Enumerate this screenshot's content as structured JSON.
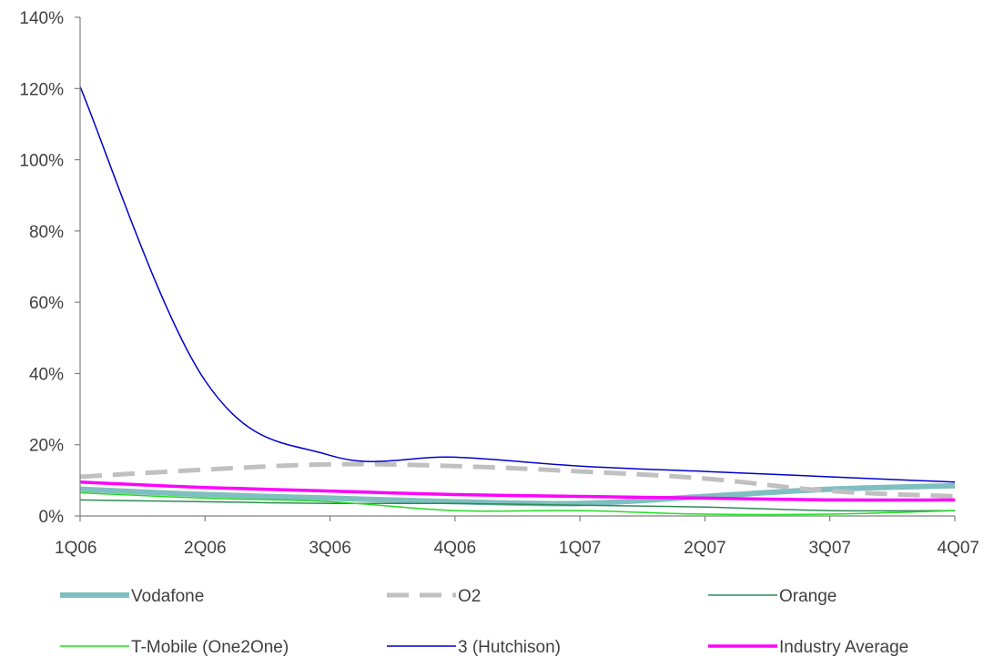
{
  "chart_data": {
    "type": "line",
    "title": "",
    "xlabel": "",
    "ylabel": "",
    "x": [
      "1Q06",
      "2Q06",
      "3Q06",
      "4Q06",
      "1Q07",
      "2Q07",
      "3Q07",
      "4Q07"
    ],
    "y_ticks": [
      "0%",
      "20%",
      "40%",
      "60%",
      "80%",
      "100%",
      "120%",
      "140%"
    ],
    "ylim": [
      0,
      140
    ],
    "grid": false,
    "legend_position": "bottom",
    "series": [
      {
        "name": "Vodafone",
        "color": "#7fbfbf",
        "style": "thick",
        "values": [
          7.5,
          6,
          5,
          4,
          3.5,
          5.5,
          7.5,
          8.5
        ]
      },
      {
        "name": "O2",
        "color": "#c0c0c0",
        "style": "dashed",
        "values": [
          11,
          13,
          14.5,
          14,
          12.5,
          10.5,
          7,
          5.5
        ]
      },
      {
        "name": "Orange",
        "color": "#2e8b57",
        "style": "thin",
        "values": [
          4.5,
          4,
          3.5,
          3.5,
          3,
          2.5,
          1.5,
          1.5
        ]
      },
      {
        "name": "T-Mobile (One2One)",
        "color": "#22dd22",
        "style": "thin",
        "values": [
          6.5,
          5,
          4,
          1.5,
          1.5,
          0.5,
          0.5,
          1.5
        ]
      },
      {
        "name": "3 (Hutchison)",
        "color": "#0000cc",
        "style": "thin",
        "values": [
          120.5,
          38,
          17,
          16.5,
          14,
          12.5,
          11,
          9.5
        ]
      },
      {
        "name": "Industry Average",
        "color": "#ff00ff",
        "style": "medium",
        "values": [
          9.5,
          8,
          7,
          6,
          5.5,
          5,
          4.5,
          4.5
        ]
      }
    ]
  }
}
